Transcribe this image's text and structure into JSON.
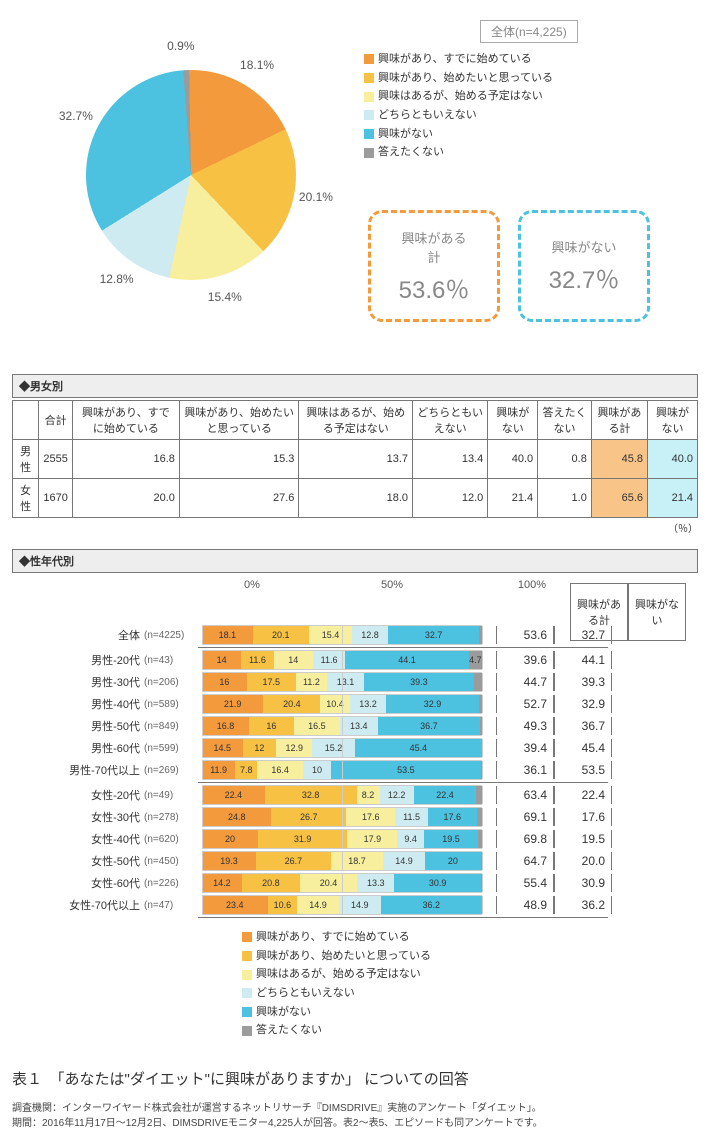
{
  "colors": {
    "c1": "#f39a3d",
    "c2": "#f7c143",
    "c3": "#f7ef9e",
    "c4": "#cdebf1",
    "c5": "#4cc1e0",
    "c6": "#9b9b9b"
  },
  "header_box": "全体(n=4,225)",
  "legend_items": [
    {
      "label": "興味があり、すでに始めている",
      "color": "c1"
    },
    {
      "label": "興味があり、始めたいと思っている",
      "color": "c2"
    },
    {
      "label": "興味はあるが、始める予定はない",
      "color": "c3"
    },
    {
      "label": "どちらともいえない",
      "color": "c4"
    },
    {
      "label": "興味がない",
      "color": "c5"
    },
    {
      "label": "答えたくない",
      "color": "c6"
    }
  ],
  "pie": {
    "values": [
      18.1,
      20.1,
      15.4,
      12.8,
      32.7,
      0.9
    ]
  },
  "sum1": {
    "title": "興味がある\n計",
    "value": "53.6％",
    "border": "#f39a3d"
  },
  "sum2": {
    "title": "興味がない",
    "value": "32.7％",
    "border": "#4cc1e0"
  },
  "gender": {
    "title": "◆男女別",
    "cols": [
      "合計",
      "興味があり、すでに始めている",
      "興味があり、始めたいと思っている",
      "興味はあるが、始める予定はない",
      "どちらともいえない",
      "興味がない",
      "答えたくない",
      "興味がある計",
      "興味がない"
    ],
    "rows": [
      {
        "label": "男性",
        "vals": [
          "2555",
          "16.8",
          "15.3",
          "13.7",
          "13.4",
          "40.0",
          "0.8",
          "45.8",
          "40.0"
        ]
      },
      {
        "label": "女性",
        "vals": [
          "1670",
          "20.0",
          "27.6",
          "18.0",
          "12.0",
          "21.4",
          "1.0",
          "65.6",
          "21.4"
        ]
      }
    ],
    "pct": "（％）"
  },
  "age": {
    "title": "◆性年代別",
    "axis": [
      "0%",
      "50%",
      "100%"
    ],
    "hdr_right": [
      "興味がある計",
      "興味がない"
    ],
    "rows": [
      {
        "label": "全体",
        "n": "(n=4225)",
        "seg": [
          18.1,
          20.1,
          15.4,
          12.8,
          32.7,
          0.9
        ],
        "sum": [
          "53.6",
          "32.7"
        ],
        "sep_after": true
      },
      {
        "label": "男性-20代",
        "n": "(n=43)",
        "seg": [
          14.0,
          11.6,
          14,
          11.6,
          44.1,
          4.7
        ],
        "sum": [
          "39.6",
          "44.1"
        ]
      },
      {
        "label": "男性-30代",
        "n": "(n=206)",
        "seg": [
          16.0,
          17.5,
          11.2,
          13.1,
          39.3,
          2.9
        ],
        "sum": [
          "44.7",
          "39.3"
        ]
      },
      {
        "label": "男性-40代",
        "n": "(n=589)",
        "seg": [
          21.9,
          20.4,
          10.4,
          13.2,
          32.9,
          1.2
        ],
        "sum": [
          "52.7",
          "32.9"
        ]
      },
      {
        "label": "男性-50代",
        "n": "(n=849)",
        "seg": [
          16.8,
          16,
          16.5,
          13.4,
          36.7,
          0.6
        ],
        "sum": [
          "49.3",
          "36.7"
        ]
      },
      {
        "label": "男性-60代",
        "n": "(n=599)",
        "seg": [
          14.5,
          12,
          12.9,
          15.2,
          45.4,
          0
        ],
        "sum": [
          "39.4",
          "45.4"
        ]
      },
      {
        "label": "男性-70代以上",
        "n": "(n=269)",
        "seg": [
          11.9,
          7.8,
          16.4,
          10,
          53.5,
          0.4
        ],
        "sum": [
          "36.1",
          "53.5"
        ],
        "sep_after": true
      },
      {
        "label": "女性-20代",
        "n": "(n=49)",
        "seg": [
          22.4,
          32.8,
          8.2,
          12.2,
          22.4,
          2
        ],
        "sum": [
          "63.4",
          "22.4"
        ]
      },
      {
        "label": "女性-30代",
        "n": "(n=278)",
        "seg": [
          24.8,
          26.7,
          17.6,
          11.5,
          17.6,
          1.8
        ],
        "sum": [
          "69.1",
          "17.6"
        ]
      },
      {
        "label": "女性-40代",
        "n": "(n=620)",
        "seg": [
          20.0,
          31.9,
          17.9,
          9.4,
          19.5,
          1.3
        ],
        "sum": [
          "69.8",
          "19.5"
        ]
      },
      {
        "label": "女性-50代",
        "n": "(n=450)",
        "seg": [
          19.3,
          26.7,
          18.7,
          14.9,
          20,
          0.4
        ],
        "sum": [
          "64.7",
          "20.0"
        ]
      },
      {
        "label": "女性-60代",
        "n": "(n=226)",
        "seg": [
          14.2,
          20.8,
          20.4,
          13.3,
          30.9,
          0.4
        ],
        "sum": [
          "55.4",
          "30.9"
        ]
      },
      {
        "label": "女性-70代以上",
        "n": "(n=47)",
        "seg": [
          23.4,
          10.6,
          14.9,
          14.9,
          36.2,
          0
        ],
        "sum": [
          "48.9",
          "36.2"
        ],
        "sep_after": true
      }
    ]
  },
  "caption": "表１　「あなたは\"ダイエット\"に興味がありますか」 についての回答",
  "credit1": "調査機関：インターワイヤード株式会社が運営するネットリサーチ『DIMSDRIVE』実施のアンケート「ダイエット」。",
  "credit2": "期間：2016年11月17日～12月2日、DIMSDRIVEモニター4,225人が回答。表2～表5、エピソードも同アンケートです。"
}
